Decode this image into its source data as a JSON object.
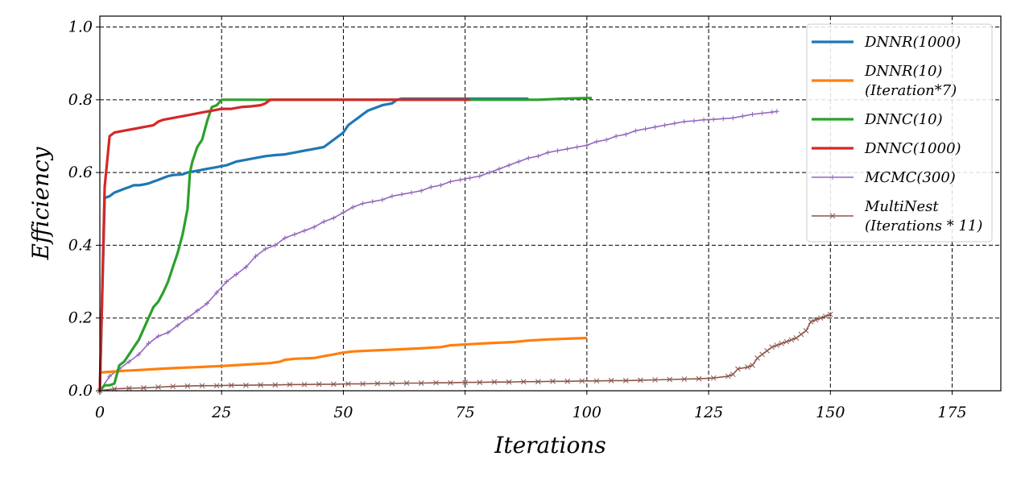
{
  "chart_data": {
    "type": "line",
    "xlabel": "Iterations",
    "ylabel": "Efficiency",
    "xlim": [
      0,
      185
    ],
    "ylim": [
      0,
      1.03
    ],
    "xticks": [
      "0",
      "25",
      "50",
      "75",
      "100",
      "125",
      "150",
      "175"
    ],
    "yticks": [
      "0.0",
      "0.2",
      "0.4",
      "0.6",
      "0.8",
      "1.0"
    ],
    "grid": true,
    "grid_style": "dashed",
    "legend_position": "upper-right",
    "series": [
      {
        "name": "DNNR(1000)",
        "label_lines": [
          "DNNR(1000)"
        ],
        "color": "#1f77b4",
        "marker": "none",
        "points": [
          [
            0,
            0
          ],
          [
            1,
            0.53
          ],
          [
            2,
            0.535
          ],
          [
            3,
            0.545
          ],
          [
            4,
            0.55
          ],
          [
            5,
            0.555
          ],
          [
            6,
            0.56
          ],
          [
            7,
            0.565
          ],
          [
            8,
            0.565
          ],
          [
            9,
            0.567
          ],
          [
            10,
            0.57
          ],
          [
            11,
            0.575
          ],
          [
            12,
            0.58
          ],
          [
            13,
            0.585
          ],
          [
            14,
            0.59
          ],
          [
            15,
            0.593
          ],
          [
            17,
            0.595
          ],
          [
            18,
            0.6
          ],
          [
            20,
            0.605
          ],
          [
            22,
            0.61
          ],
          [
            24,
            0.615
          ],
          [
            26,
            0.62
          ],
          [
            28,
            0.63
          ],
          [
            30,
            0.635
          ],
          [
            32,
            0.64
          ],
          [
            34,
            0.645
          ],
          [
            36,
            0.648
          ],
          [
            38,
            0.65
          ],
          [
            40,
            0.655
          ],
          [
            42,
            0.66
          ],
          [
            44,
            0.665
          ],
          [
            46,
            0.67
          ],
          [
            47,
            0.68
          ],
          [
            48,
            0.69
          ],
          [
            49,
            0.7
          ],
          [
            50,
            0.71
          ],
          [
            51,
            0.73
          ],
          [
            52,
            0.74
          ],
          [
            53,
            0.75
          ],
          [
            54,
            0.76
          ],
          [
            55,
            0.77
          ],
          [
            56,
            0.775
          ],
          [
            57,
            0.78
          ],
          [
            58,
            0.785
          ],
          [
            60,
            0.79
          ],
          [
            61,
            0.8
          ],
          [
            62,
            0.803
          ],
          [
            70,
            0.803
          ],
          [
            80,
            0.803
          ],
          [
            88,
            0.803
          ]
        ]
      },
      {
        "name": "DNNR(10)\n(Iteration*7)",
        "label_lines": [
          "DNNR(10)",
          "(Iteration*7)"
        ],
        "color": "#ff7f0e",
        "marker": "none",
        "points": [
          [
            0,
            0.05
          ],
          [
            2,
            0.052
          ],
          [
            5,
            0.055
          ],
          [
            8,
            0.057
          ],
          [
            12,
            0.06
          ],
          [
            16,
            0.063
          ],
          [
            20,
            0.065
          ],
          [
            25,
            0.068
          ],
          [
            30,
            0.072
          ],
          [
            35,
            0.076
          ],
          [
            37,
            0.08
          ],
          [
            38,
            0.085
          ],
          [
            40,
            0.088
          ],
          [
            44,
            0.09
          ],
          [
            46,
            0.095
          ],
          [
            48,
            0.1
          ],
          [
            50,
            0.105
          ],
          [
            52,
            0.108
          ],
          [
            55,
            0.11
          ],
          [
            60,
            0.113
          ],
          [
            65,
            0.116
          ],
          [
            70,
            0.12
          ],
          [
            72,
            0.125
          ],
          [
            76,
            0.128
          ],
          [
            80,
            0.131
          ],
          [
            85,
            0.134
          ],
          [
            88,
            0.138
          ],
          [
            92,
            0.141
          ],
          [
            96,
            0.143
          ],
          [
            100,
            0.145
          ]
        ]
      },
      {
        "name": "DNNC(10)",
        "label_lines": [
          "DNNC(10)"
        ],
        "color": "#2ca02c",
        "marker": "none",
        "points": [
          [
            0,
            0
          ],
          [
            1,
            0.015
          ],
          [
            2,
            0.015
          ],
          [
            3,
            0.02
          ],
          [
            4,
            0.07
          ],
          [
            5,
            0.08
          ],
          [
            6,
            0.1
          ],
          [
            7,
            0.12
          ],
          [
            8,
            0.14
          ],
          [
            9,
            0.17
          ],
          [
            10,
            0.2
          ],
          [
            11,
            0.23
          ],
          [
            12,
            0.245
          ],
          [
            13,
            0.27
          ],
          [
            14,
            0.3
          ],
          [
            15,
            0.34
          ],
          [
            16,
            0.38
          ],
          [
            17,
            0.43
          ],
          [
            18,
            0.5
          ],
          [
            18.5,
            0.6
          ],
          [
            19,
            0.63
          ],
          [
            20,
            0.67
          ],
          [
            21,
            0.69
          ],
          [
            22,
            0.74
          ],
          [
            23,
            0.78
          ],
          [
            24,
            0.785
          ],
          [
            25,
            0.8
          ],
          [
            30,
            0.8
          ],
          [
            40,
            0.8
          ],
          [
            50,
            0.8
          ],
          [
            60,
            0.8
          ],
          [
            70,
            0.8
          ],
          [
            80,
            0.8
          ],
          [
            90,
            0.8
          ],
          [
            95,
            0.803
          ],
          [
            101,
            0.805
          ]
        ]
      },
      {
        "name": "DNNC(1000)",
        "label_lines": [
          "DNNC(1000)"
        ],
        "color": "#d62728",
        "marker": "none",
        "points": [
          [
            0,
            0
          ],
          [
            1,
            0.56
          ],
          [
            2,
            0.7
          ],
          [
            3,
            0.71
          ],
          [
            5,
            0.715
          ],
          [
            7,
            0.72
          ],
          [
            9,
            0.725
          ],
          [
            11,
            0.73
          ],
          [
            12,
            0.74
          ],
          [
            13,
            0.745
          ],
          [
            15,
            0.75
          ],
          [
            17,
            0.755
          ],
          [
            19,
            0.76
          ],
          [
            21,
            0.765
          ],
          [
            23,
            0.77
          ],
          [
            25,
            0.775
          ],
          [
            27,
            0.775
          ],
          [
            29,
            0.78
          ],
          [
            31,
            0.782
          ],
          [
            33,
            0.785
          ],
          [
            34,
            0.79
          ],
          [
            35,
            0.8
          ],
          [
            45,
            0.8
          ],
          [
            55,
            0.8
          ],
          [
            65,
            0.8
          ],
          [
            76,
            0.8
          ]
        ]
      },
      {
        "name": "MCMC(300)",
        "label_lines": [
          "MCMC(300)"
        ],
        "color": "#9467bd",
        "marker": "plus",
        "points": [
          [
            0,
            0
          ],
          [
            2,
            0.04
          ],
          [
            4,
            0.06
          ],
          [
            6,
            0.08
          ],
          [
            8,
            0.1
          ],
          [
            10,
            0.13
          ],
          [
            12,
            0.15
          ],
          [
            14,
            0.16
          ],
          [
            16,
            0.18
          ],
          [
            18,
            0.2
          ],
          [
            20,
            0.22
          ],
          [
            22,
            0.24
          ],
          [
            24,
            0.27
          ],
          [
            26,
            0.3
          ],
          [
            28,
            0.32
          ],
          [
            30,
            0.34
          ],
          [
            32,
            0.37
          ],
          [
            34,
            0.39
          ],
          [
            36,
            0.4
          ],
          [
            38,
            0.42
          ],
          [
            40,
            0.43
          ],
          [
            42,
            0.44
          ],
          [
            44,
            0.45
          ],
          [
            46,
            0.465
          ],
          [
            48,
            0.475
          ],
          [
            50,
            0.49
          ],
          [
            52,
            0.505
          ],
          [
            54,
            0.515
          ],
          [
            56,
            0.52
          ],
          [
            58,
            0.525
          ],
          [
            60,
            0.535
          ],
          [
            62,
            0.54
          ],
          [
            64,
            0.545
          ],
          [
            66,
            0.55
          ],
          [
            68,
            0.56
          ],
          [
            70,
            0.565
          ],
          [
            72,
            0.575
          ],
          [
            74,
            0.58
          ],
          [
            76,
            0.585
          ],
          [
            78,
            0.59
          ],
          [
            80,
            0.6
          ],
          [
            82,
            0.61
          ],
          [
            84,
            0.62
          ],
          [
            86,
            0.63
          ],
          [
            88,
            0.64
          ],
          [
            90,
            0.645
          ],
          [
            92,
            0.655
          ],
          [
            94,
            0.66
          ],
          [
            96,
            0.665
          ],
          [
            98,
            0.67
          ],
          [
            100,
            0.675
          ],
          [
            102,
            0.685
          ],
          [
            104,
            0.69
          ],
          [
            106,
            0.7
          ],
          [
            108,
            0.705
          ],
          [
            110,
            0.715
          ],
          [
            112,
            0.72
          ],
          [
            114,
            0.725
          ],
          [
            116,
            0.73
          ],
          [
            118,
            0.735
          ],
          [
            120,
            0.74
          ],
          [
            122,
            0.742
          ],
          [
            124,
            0.745
          ],
          [
            126,
            0.746
          ],
          [
            128,
            0.748
          ],
          [
            130,
            0.75
          ],
          [
            132,
            0.755
          ],
          [
            134,
            0.76
          ],
          [
            136,
            0.763
          ],
          [
            138,
            0.766
          ],
          [
            139,
            0.768
          ]
        ]
      },
      {
        "name": "MultiNest\n(Iterations * 11)",
        "label_lines": [
          "MultiNest",
          "(Iterations * 11)"
        ],
        "color": "#8c564b",
        "marker": "x",
        "points": [
          [
            0,
            0
          ],
          [
            3,
            0.005
          ],
          [
            6,
            0.007
          ],
          [
            9,
            0.008
          ],
          [
            12,
            0.01
          ],
          [
            15,
            0.012
          ],
          [
            18,
            0.013
          ],
          [
            21,
            0.014
          ],
          [
            24,
            0.014
          ],
          [
            27,
            0.015
          ],
          [
            30,
            0.015
          ],
          [
            33,
            0.016
          ],
          [
            36,
            0.016
          ],
          [
            39,
            0.017
          ],
          [
            42,
            0.017
          ],
          [
            45,
            0.018
          ],
          [
            48,
            0.018
          ],
          [
            51,
            0.019
          ],
          [
            54,
            0.019
          ],
          [
            57,
            0.02
          ],
          [
            60,
            0.02
          ],
          [
            63,
            0.021
          ],
          [
            66,
            0.021
          ],
          [
            69,
            0.022
          ],
          [
            72,
            0.022
          ],
          [
            75,
            0.023
          ],
          [
            78,
            0.023
          ],
          [
            81,
            0.024
          ],
          [
            84,
            0.024
          ],
          [
            87,
            0.025
          ],
          [
            90,
            0.025
          ],
          [
            93,
            0.026
          ],
          [
            96,
            0.026
          ],
          [
            99,
            0.027
          ],
          [
            102,
            0.027
          ],
          [
            105,
            0.028
          ],
          [
            108,
            0.028
          ],
          [
            111,
            0.029
          ],
          [
            114,
            0.03
          ],
          [
            117,
            0.031
          ],
          [
            120,
            0.032
          ],
          [
            123,
            0.033
          ],
          [
            126,
            0.035
          ],
          [
            129,
            0.04
          ],
          [
            130,
            0.045
          ],
          [
            131,
            0.06
          ],
          [
            133,
            0.065
          ],
          [
            134,
            0.07
          ],
          [
            135,
            0.09
          ],
          [
            136,
            0.1
          ],
          [
            137,
            0.11
          ],
          [
            138,
            0.12
          ],
          [
            139,
            0.125
          ],
          [
            140,
            0.13
          ],
          [
            141,
            0.135
          ],
          [
            142,
            0.14
          ],
          [
            143,
            0.145
          ],
          [
            144,
            0.155
          ],
          [
            145,
            0.165
          ],
          [
            146,
            0.19
          ],
          [
            147,
            0.195
          ],
          [
            148,
            0.2
          ],
          [
            149,
            0.205
          ],
          [
            150,
            0.21
          ]
        ]
      }
    ]
  }
}
